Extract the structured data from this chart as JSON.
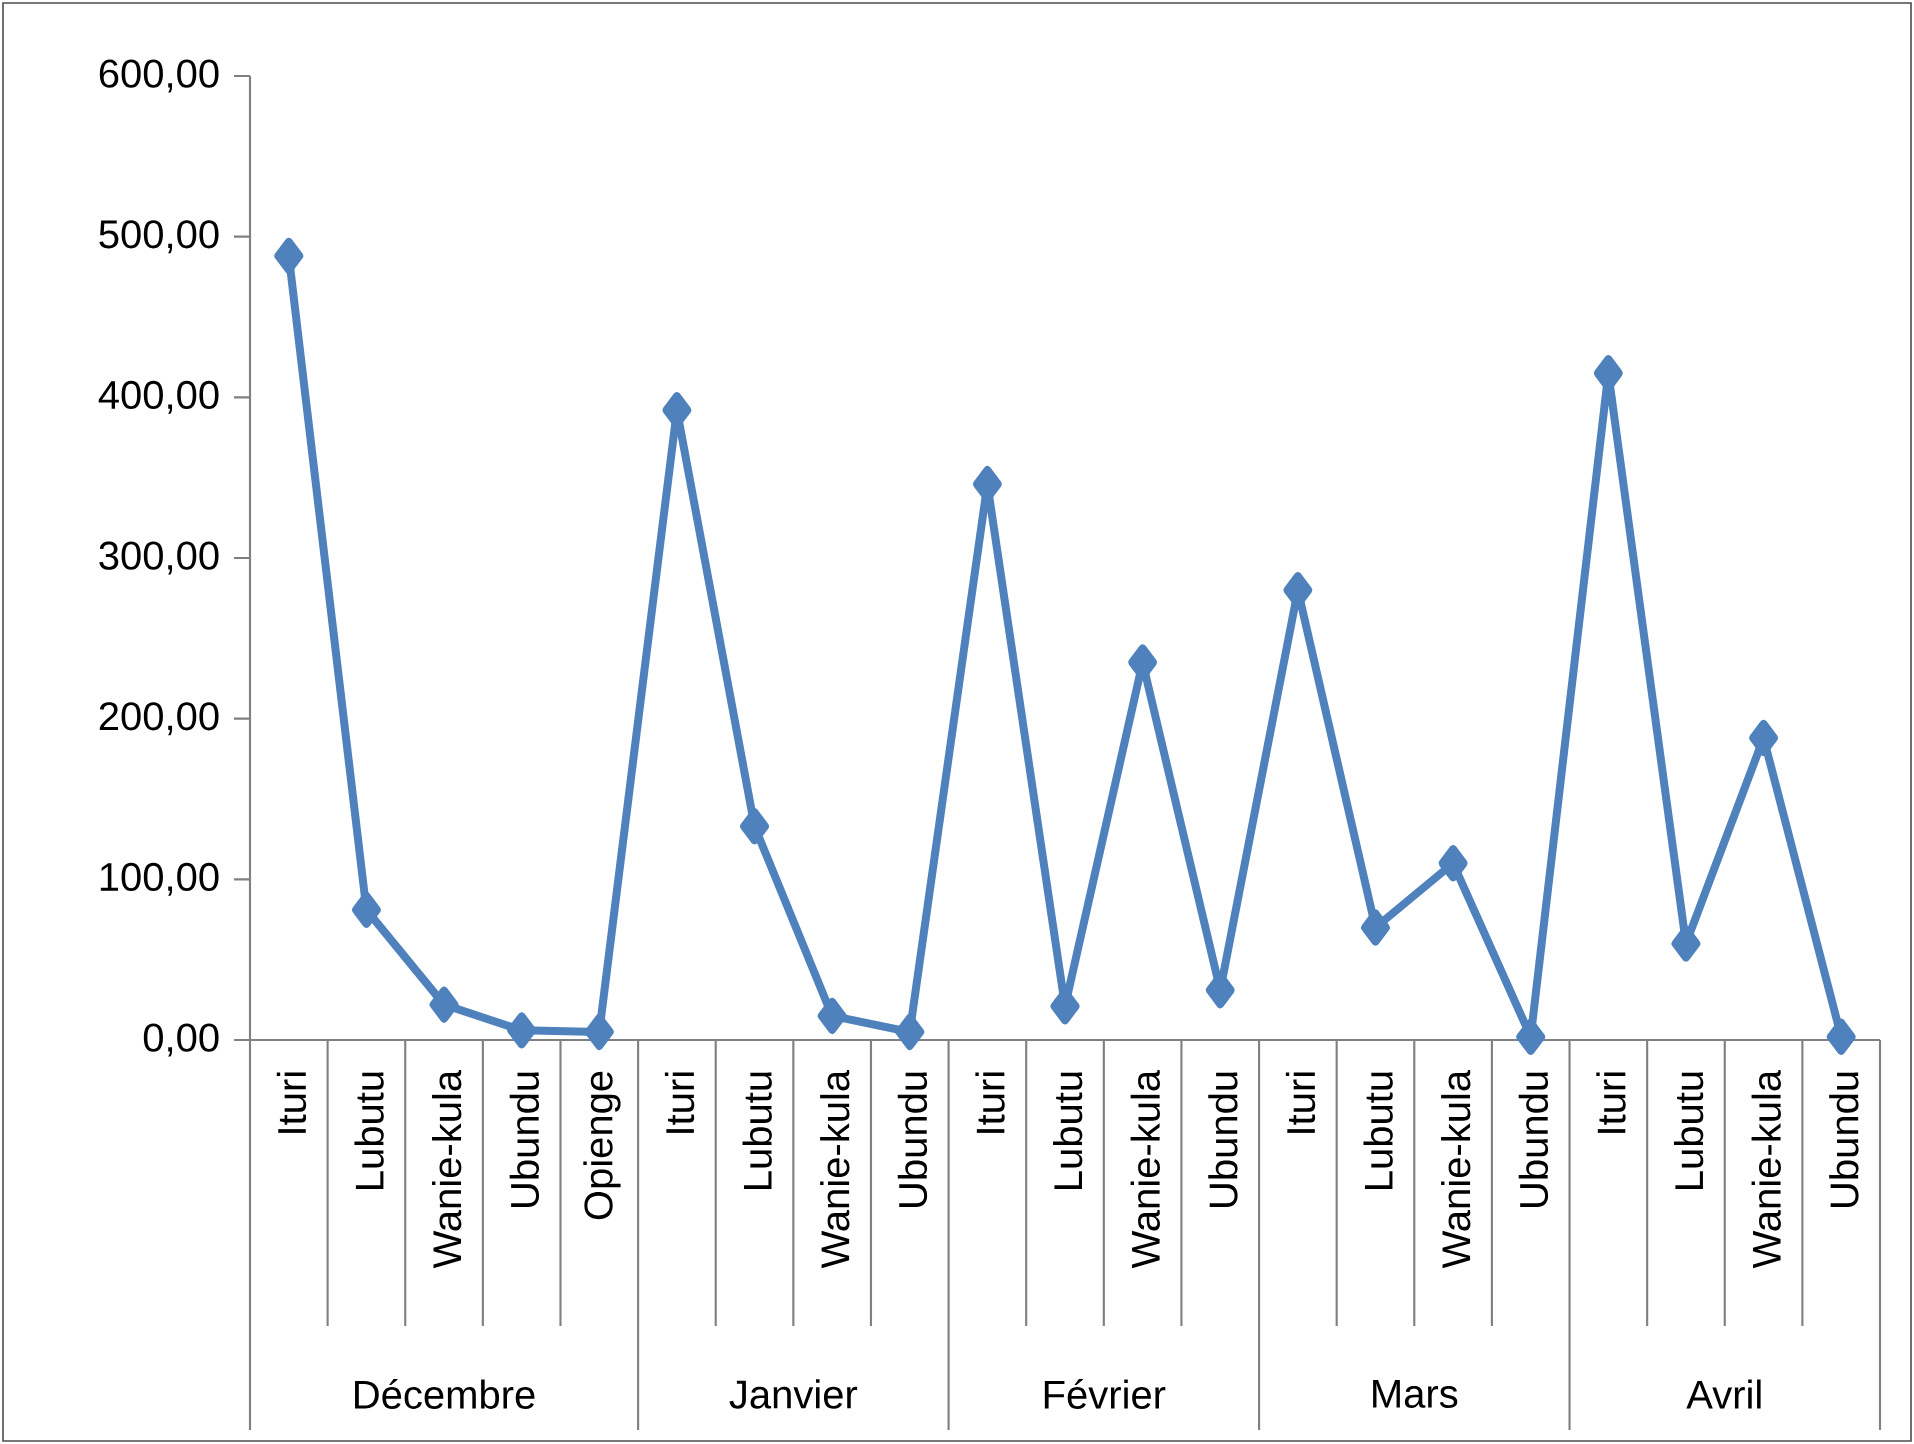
{
  "chart_data": {
    "type": "line",
    "categories": [
      "Ituri",
      "Lubutu",
      "Wanie-kula",
      "Ubundu",
      "Opienge",
      "Ituri",
      "Lubutu",
      "Wanie-kula",
      "Ubundu",
      "Ituri",
      "Lubutu",
      "Wanie-kula",
      "Ubundu",
      "Ituri",
      "Lubutu",
      "Wanie-kula",
      "Ubundu",
      "Ituri",
      "Lubutu",
      "Wanie-kula",
      "Ubundu"
    ],
    "series": [
      {
        "color": "#4f81bd",
        "values": [
          488,
          81,
          22,
          6,
          5,
          392,
          133,
          15,
          5,
          346,
          21,
          235,
          31,
          280,
          70,
          110,
          2,
          415,
          60,
          188,
          2
        ]
      }
    ],
    "ylim": [
      0,
      600
    ],
    "yticks": [
      {
        "value": 0,
        "label": "0,00"
      },
      {
        "value": 100,
        "label": "100,00"
      },
      {
        "value": 200,
        "label": "200,00"
      },
      {
        "value": 300,
        "label": "300,00"
      },
      {
        "value": 400,
        "label": "400,00"
      },
      {
        "value": 500,
        "label": "500,00"
      },
      {
        "value": 600,
        "label": "600,00"
      }
    ],
    "marker": "diamond",
    "line_style": "solid",
    "annotations": [
      "Décembre",
      "Janvier",
      "Février",
      "Mars",
      "Avril"
    ]
  }
}
